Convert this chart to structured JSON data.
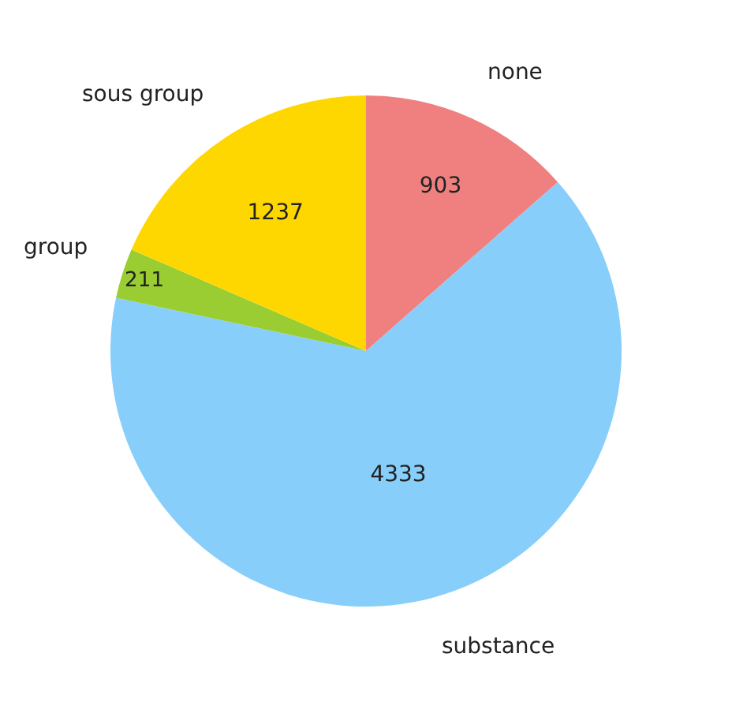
{
  "chart_data": {
    "type": "pie",
    "categories": [
      "none",
      "substance",
      "group",
      "sous group"
    ],
    "values": [
      903,
      4333,
      211,
      1237
    ],
    "colors": [
      "#f08080",
      "#87cefa",
      "#9acd32",
      "#ffd700"
    ],
    "data_labels": true,
    "legend": false
  }
}
